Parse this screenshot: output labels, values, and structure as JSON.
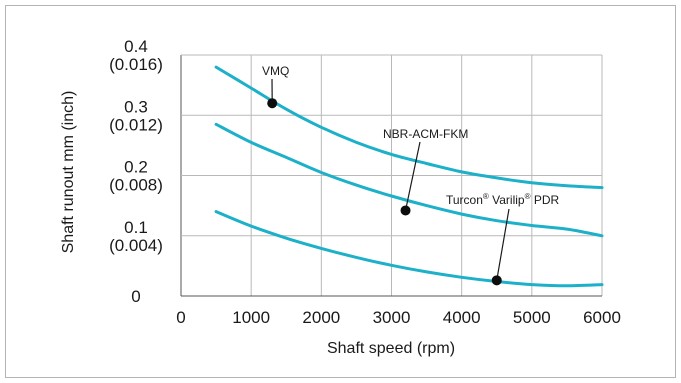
{
  "chart_data": {
    "type": "line",
    "title": "",
    "xlabel": "Shaft speed (rpm)",
    "ylabel": "Shaft runout mm (inch)",
    "xlim": [
      0,
      6000
    ],
    "ylim": [
      0,
      0.4
    ],
    "grid": true,
    "x_ticks": [
      "0",
      "1000",
      "2000",
      "3000",
      "4000",
      "5000",
      "6000"
    ],
    "y_ticks": [
      {
        "value": 0,
        "mm": "0",
        "inch": ""
      },
      {
        "value": 0.1,
        "mm": "0.1",
        "inch": "(0.004)"
      },
      {
        "value": 0.2,
        "mm": "0.2",
        "inch": "(0.008)"
      },
      {
        "value": 0.3,
        "mm": "0.3",
        "inch": "(0.012)"
      },
      {
        "value": 0.4,
        "mm": "0.4",
        "inch": "(0.016)"
      }
    ],
    "series": [
      {
        "name": "VMQ",
        "color": "#1cb0c9",
        "x": [
          500,
          1000,
          1500,
          2000,
          2500,
          3000,
          3500,
          4000,
          4500,
          5000,
          5500,
          6000
        ],
        "y": [
          0.38,
          0.345,
          0.31,
          0.28,
          0.255,
          0.235,
          0.22,
          0.206,
          0.196,
          0.188,
          0.183,
          0.18
        ],
        "marker": {
          "x": 1300,
          "y": 0.32
        }
      },
      {
        "name": "NBR-ACM-FKM",
        "color": "#1cb0c9",
        "x": [
          500,
          1000,
          1500,
          2000,
          2500,
          3000,
          3500,
          4000,
          4500,
          5000,
          5500,
          6000
        ],
        "y": [
          0.285,
          0.255,
          0.23,
          0.205,
          0.184,
          0.166,
          0.15,
          0.136,
          0.125,
          0.117,
          0.111,
          0.1
        ],
        "marker": {
          "x": 3200,
          "y": 0.142
        }
      },
      {
        "name": "Turcon® Varilip® PDR",
        "name_parts": [
          "Turcon",
          "®",
          " Varilip",
          "®",
          " PDR"
        ],
        "color": "#1cb0c9",
        "x": [
          500,
          1000,
          1500,
          2000,
          2500,
          3000,
          3500,
          4000,
          4500,
          5000,
          5500,
          6000
        ],
        "y": [
          0.14,
          0.116,
          0.096,
          0.079,
          0.064,
          0.051,
          0.04,
          0.031,
          0.024,
          0.019,
          0.017,
          0.019
        ],
        "marker": {
          "x": 4500,
          "y": 0.026
        }
      }
    ]
  }
}
